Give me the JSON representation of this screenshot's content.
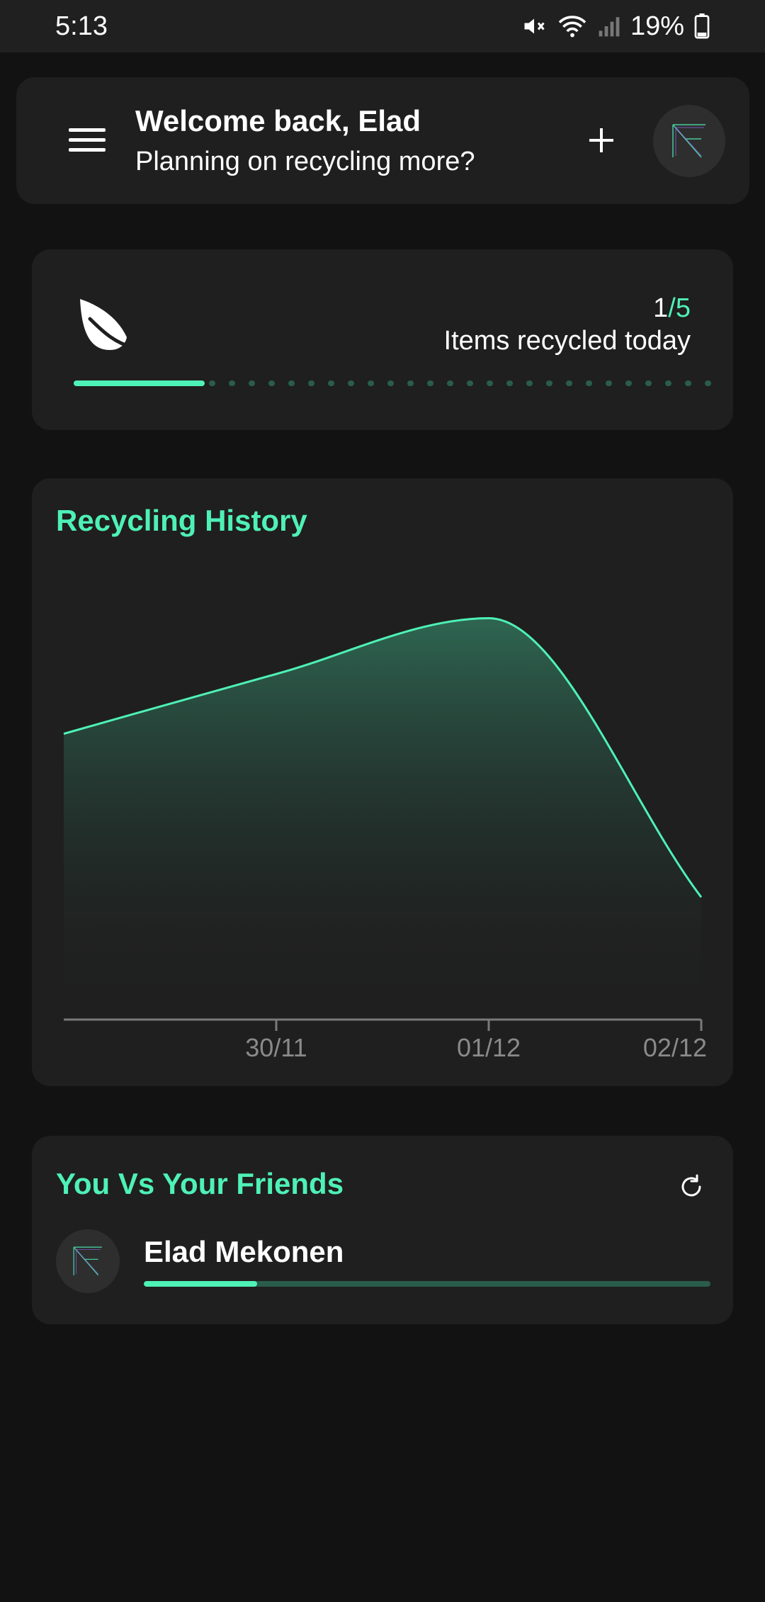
{
  "status_bar": {
    "time": "5:13",
    "battery": "19%",
    "icons": [
      "mute-icon",
      "wifi-icon",
      "signal-icon",
      "battery-icon"
    ]
  },
  "header": {
    "title": "Welcome back, Elad",
    "subtitle": "Planning on recycling more?",
    "icons": [
      "menu-icon",
      "add-icon",
      "avatar-logo"
    ]
  },
  "daily_goal": {
    "current": "1",
    "separator": "/",
    "total": "5",
    "label": "Items recycled today",
    "progress_fraction": 0.2,
    "icon": "leaf-icon"
  },
  "history": {
    "title": "Recycling History",
    "chart_data": {
      "type": "area",
      "x": [
        "",
        "30/11",
        "01/12",
        "02/12"
      ],
      "tick_labels": [
        "30/11",
        "01/12",
        "02/12"
      ],
      "values": [
        0.71,
        0.86,
        1.0,
        0.3
      ],
      "ylim": [
        0,
        1.2
      ],
      "grid": false,
      "legend": "none"
    }
  },
  "friends": {
    "title": "You Vs Your Friends",
    "refresh_icon": "refresh-icon",
    "list": [
      {
        "name": "Elad Mekonen",
        "progress_fraction": 0.2
      }
    ]
  },
  "colors": {
    "accent": "#4ef1b6",
    "background": "#121212",
    "card": "#1f1f1f",
    "track": "#2a5c4c"
  }
}
